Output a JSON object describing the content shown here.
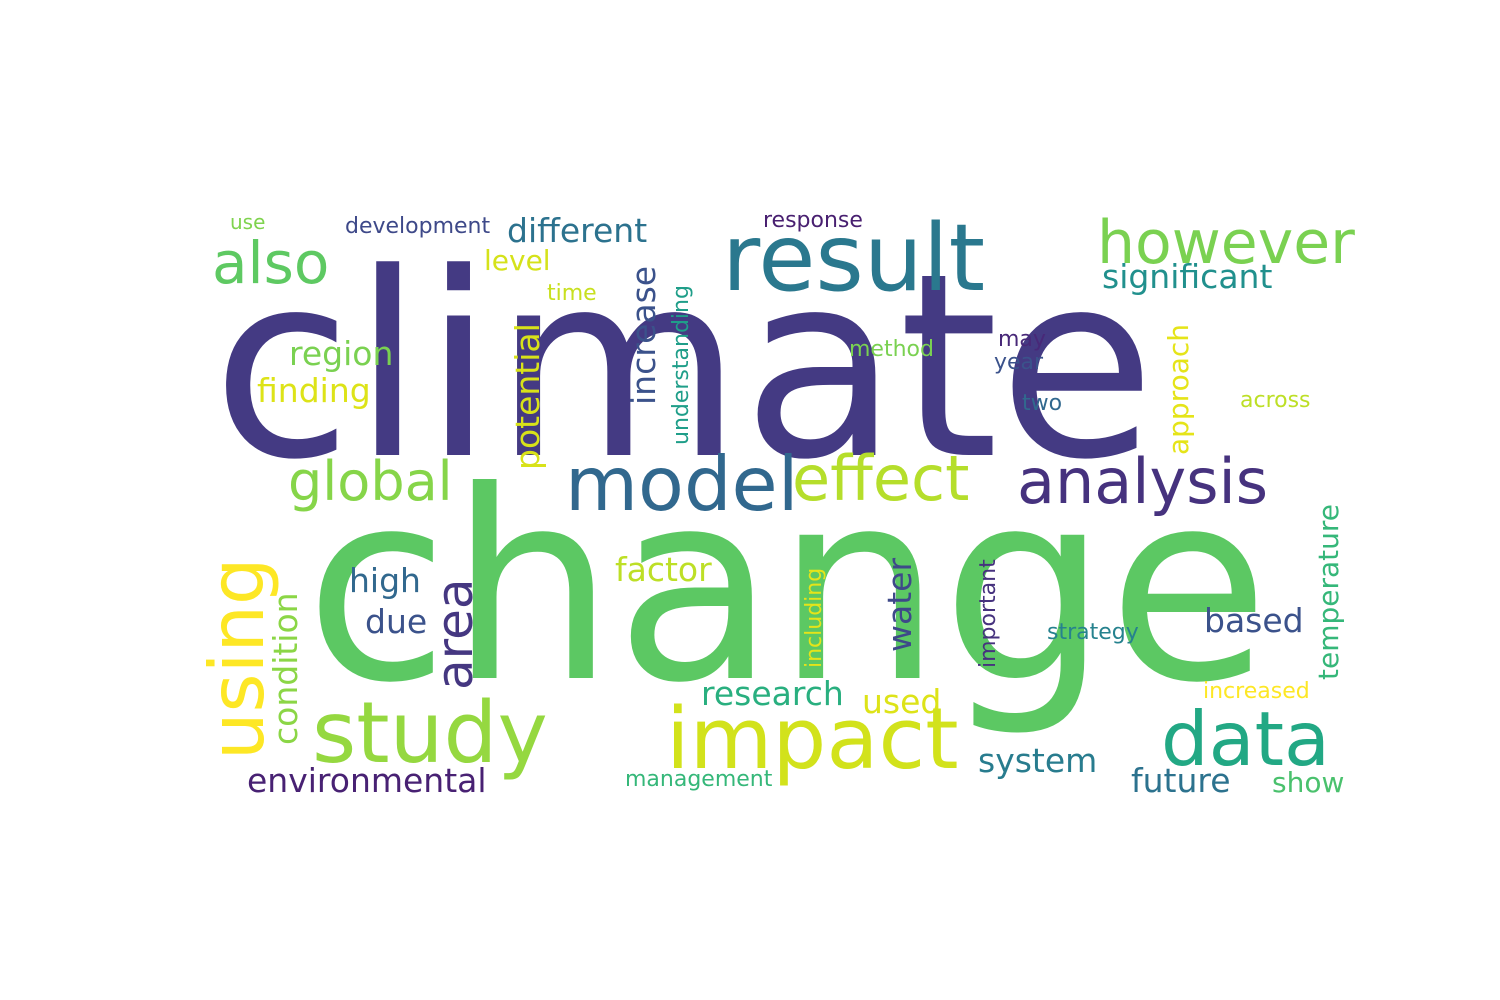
{
  "word_cloud": {
    "words": [
      {
        "text": "climate",
        "color": "#443a83"
      },
      {
        "text": "change",
        "color": "#5cc863"
      },
      {
        "text": "result",
        "color": "#2a788e"
      },
      {
        "text": "however",
        "color": "#7ad151"
      },
      {
        "text": "also",
        "color": "#5ec962"
      },
      {
        "text": "different",
        "color": "#2c728e"
      },
      {
        "text": "development",
        "color": "#3e4989"
      },
      {
        "text": "response",
        "color": "#481f70"
      },
      {
        "text": "use",
        "color": "#7fd34e"
      },
      {
        "text": "level",
        "color": "#d5e21a"
      },
      {
        "text": "time",
        "color": "#c8e020"
      },
      {
        "text": "significant",
        "color": "#21908d"
      },
      {
        "text": "region",
        "color": "#7ad151"
      },
      {
        "text": "finding",
        "color": "#dde318"
      },
      {
        "text": "method",
        "color": "#7ad151"
      },
      {
        "text": "may",
        "color": "#482878"
      },
      {
        "text": "year",
        "color": "#3b528b"
      },
      {
        "text": "two",
        "color": "#31688e"
      },
      {
        "text": "across",
        "color": "#bddf26"
      },
      {
        "text": "model",
        "color": "#31688e"
      },
      {
        "text": "effect",
        "color": "#b5de2b"
      },
      {
        "text": "analysis",
        "color": "#46327e"
      },
      {
        "text": "global",
        "color": "#86d549"
      },
      {
        "text": "using",
        "color": "#fde725"
      },
      {
        "text": "area",
        "color": "#453781"
      },
      {
        "text": "potential",
        "color": "#d8e219"
      },
      {
        "text": "increase",
        "color": "#3b528b"
      },
      {
        "text": "understanding",
        "color": "#1f9e89"
      },
      {
        "text": "approach",
        "color": "#e5e419"
      },
      {
        "text": "temperature",
        "color": "#35b779"
      },
      {
        "text": "high",
        "color": "#31688e"
      },
      {
        "text": "due",
        "color": "#3b528b"
      },
      {
        "text": "factor",
        "color": "#bddf26"
      },
      {
        "text": "water",
        "color": "#3e4989"
      },
      {
        "text": "including",
        "color": "#e5e419"
      },
      {
        "text": "important",
        "color": "#46327e"
      },
      {
        "text": "strategy",
        "color": "#26828e"
      },
      {
        "text": "based",
        "color": "#3b528b"
      },
      {
        "text": "condition",
        "color": "#8bd646"
      },
      {
        "text": "research",
        "color": "#29af7f"
      },
      {
        "text": "used",
        "color": "#dde318"
      },
      {
        "text": "increased",
        "color": "#fde725"
      },
      {
        "text": "study",
        "color": "#95d840"
      },
      {
        "text": "impact",
        "color": "#d2e21b"
      },
      {
        "text": "data",
        "color": "#22a884"
      },
      {
        "text": "environmental",
        "color": "#482173"
      },
      {
        "text": "management",
        "color": "#35b779"
      },
      {
        "text": "system",
        "color": "#287c8e"
      },
      {
        "text": "future",
        "color": "#2c728e"
      },
      {
        "text": "show",
        "color": "#4ac16d"
      }
    ]
  }
}
